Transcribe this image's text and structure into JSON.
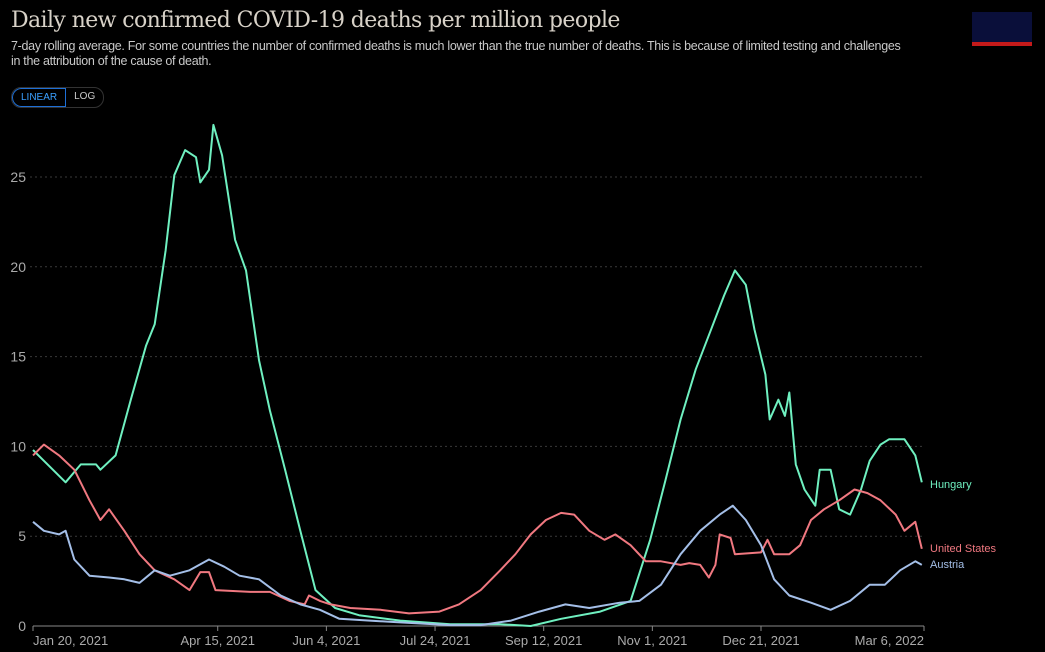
{
  "header": {
    "title": "Daily new confirmed COVID-19 deaths per million people",
    "subtitle": "7-day rolling average. For some countries the number of confirmed deaths is much lower than the true number of deaths. This is because of limited testing and challenges in the attribution of the cause of death.",
    "scale_options": [
      "LINEAR",
      "LOG"
    ],
    "selected_scale": "LINEAR",
    "logo_colors": {
      "bg": "#0a0f3a",
      "bar": "#c41a1a"
    }
  },
  "chart_data": {
    "type": "line",
    "title": "Daily new confirmed COVID-19 deaths per million people",
    "xlim": [
      "2021-01-20",
      "2022-03-06"
    ],
    "ylim": [
      0,
      27.5
    ],
    "yticks": [
      0,
      5,
      10,
      15,
      20,
      25
    ],
    "xticks": [
      {
        "date": "2021-01-20",
        "label": "Jan 20, 2021"
      },
      {
        "date": "2021-04-15",
        "label": "Apr 15, 2021"
      },
      {
        "date": "2021-06-04",
        "label": "Jun 4, 2021"
      },
      {
        "date": "2021-07-24",
        "label": "Jul 24, 2021"
      },
      {
        "date": "2021-09-12",
        "label": "Sep 12, 2021"
      },
      {
        "date": "2021-11-01",
        "label": "Nov 1, 2021"
      },
      {
        "date": "2021-12-21",
        "label": "Dec 21, 2021"
      },
      {
        "date": "2022-03-06",
        "label": "Mar 6, 2022"
      }
    ],
    "grid": true,
    "legend": "line-end labels",
    "series": [
      {
        "name": "Hungary",
        "color": "#6ff0c0",
        "points": [
          [
            "2021-01-20",
            9.8
          ],
          [
            "2021-01-25",
            9.2
          ],
          [
            "2021-02-04",
            8.0
          ],
          [
            "2021-02-11",
            9.0
          ],
          [
            "2021-02-18",
            9.0
          ],
          [
            "2021-02-20",
            8.7
          ],
          [
            "2021-02-27",
            9.5
          ],
          [
            "2021-03-06",
            12.6
          ],
          [
            "2021-03-13",
            15.6
          ],
          [
            "2021-03-17",
            16.8
          ],
          [
            "2021-03-22",
            20.9
          ],
          [
            "2021-03-26",
            25.1
          ],
          [
            "2021-03-31",
            26.5
          ],
          [
            "2021-04-05",
            26.1
          ],
          [
            "2021-04-07",
            24.7
          ],
          [
            "2021-04-11",
            25.4
          ],
          [
            "2021-04-13",
            27.9
          ],
          [
            "2021-04-17",
            26.2
          ],
          [
            "2021-04-23",
            21.5
          ],
          [
            "2021-04-28",
            19.8
          ],
          [
            "2021-05-04",
            14.8
          ],
          [
            "2021-05-09",
            12.0
          ],
          [
            "2021-05-16",
            8.7
          ],
          [
            "2021-05-23",
            5.3
          ],
          [
            "2021-05-30",
            2.0
          ],
          [
            "2021-06-08",
            1.0
          ],
          [
            "2021-06-19",
            0.6
          ],
          [
            "2021-07-08",
            0.3
          ],
          [
            "2021-07-31",
            0.1
          ],
          [
            "2021-08-23",
            0.1
          ],
          [
            "2021-09-06",
            0.0
          ],
          [
            "2021-09-20",
            0.4
          ],
          [
            "2021-10-08",
            0.8
          ],
          [
            "2021-10-22",
            1.4
          ],
          [
            "2021-10-31",
            4.8
          ],
          [
            "2021-11-07",
            8.1
          ],
          [
            "2021-11-14",
            11.5
          ],
          [
            "2021-11-21",
            14.3
          ],
          [
            "2021-11-28",
            16.5
          ],
          [
            "2021-12-04",
            18.4
          ],
          [
            "2021-12-09",
            19.8
          ],
          [
            "2021-12-14",
            19.0
          ],
          [
            "2021-12-18",
            16.5
          ],
          [
            "2021-12-23",
            14.0
          ],
          [
            "2021-12-25",
            11.5
          ],
          [
            "2021-12-29",
            12.6
          ],
          [
            "2022-01-01",
            11.7
          ],
          [
            "2022-01-03",
            13.0
          ],
          [
            "2022-01-06",
            9.0
          ],
          [
            "2022-01-10",
            7.6
          ],
          [
            "2022-01-15",
            6.7
          ],
          [
            "2022-01-17",
            8.7
          ],
          [
            "2022-01-22",
            8.7
          ],
          [
            "2022-01-26",
            6.5
          ],
          [
            "2022-01-31",
            6.2
          ],
          [
            "2022-02-05",
            7.6
          ],
          [
            "2022-02-09",
            9.2
          ],
          [
            "2022-02-14",
            10.1
          ],
          [
            "2022-02-18",
            10.4
          ],
          [
            "2022-02-25",
            10.4
          ],
          [
            "2022-03-02",
            9.5
          ],
          [
            "2022-03-05",
            8.0
          ]
        ]
      },
      {
        "name": "United States",
        "color": "#f07880",
        "points": [
          [
            "2021-01-20",
            9.5
          ],
          [
            "2021-01-25",
            10.1
          ],
          [
            "2021-02-01",
            9.5
          ],
          [
            "2021-02-08",
            8.7
          ],
          [
            "2021-02-15",
            7.0
          ],
          [
            "2021-02-20",
            5.9
          ],
          [
            "2021-02-24",
            6.5
          ],
          [
            "2021-03-03",
            5.3
          ],
          [
            "2021-03-10",
            4.0
          ],
          [
            "2021-03-17",
            3.1
          ],
          [
            "2021-03-26",
            2.6
          ],
          [
            "2021-04-02",
            2.0
          ],
          [
            "2021-04-07",
            3.0
          ],
          [
            "2021-04-11",
            3.0
          ],
          [
            "2021-04-14",
            2.0
          ],
          [
            "2021-04-30",
            1.9
          ],
          [
            "2021-05-09",
            1.9
          ],
          [
            "2021-05-18",
            1.4
          ],
          [
            "2021-05-25",
            1.2
          ],
          [
            "2021-05-27",
            1.7
          ],
          [
            "2021-06-01",
            1.4
          ],
          [
            "2021-06-06",
            1.2
          ],
          [
            "2021-06-15",
            1.0
          ],
          [
            "2021-06-29",
            0.9
          ],
          [
            "2021-07-12",
            0.7
          ],
          [
            "2021-07-26",
            0.8
          ],
          [
            "2021-08-04",
            1.2
          ],
          [
            "2021-08-14",
            2.0
          ],
          [
            "2021-08-23",
            3.1
          ],
          [
            "2021-08-30",
            4.0
          ],
          [
            "2021-09-06",
            5.1
          ],
          [
            "2021-09-13",
            5.9
          ],
          [
            "2021-09-20",
            6.3
          ],
          [
            "2021-09-26",
            6.2
          ],
          [
            "2021-10-03",
            5.3
          ],
          [
            "2021-10-10",
            4.8
          ],
          [
            "2021-10-15",
            5.1
          ],
          [
            "2021-10-22",
            4.5
          ],
          [
            "2021-10-29",
            3.6
          ],
          [
            "2021-11-05",
            3.6
          ],
          [
            "2021-11-14",
            3.4
          ],
          [
            "2021-11-18",
            3.5
          ],
          [
            "2021-11-23",
            3.4
          ],
          [
            "2021-11-27",
            2.7
          ],
          [
            "2021-11-30",
            3.4
          ],
          [
            "2021-12-02",
            5.1
          ],
          [
            "2021-12-07",
            4.9
          ],
          [
            "2021-12-09",
            4.0
          ],
          [
            "2021-12-21",
            4.1
          ],
          [
            "2021-12-24",
            4.8
          ],
          [
            "2021-12-27",
            4.0
          ],
          [
            "2022-01-03",
            4.0
          ],
          [
            "2022-01-08",
            4.5
          ],
          [
            "2022-01-13",
            5.9
          ],
          [
            "2022-01-19",
            6.5
          ],
          [
            "2022-01-26",
            7.0
          ],
          [
            "2022-02-02",
            7.6
          ],
          [
            "2022-02-08",
            7.4
          ],
          [
            "2022-02-14",
            7.0
          ],
          [
            "2022-02-21",
            6.2
          ],
          [
            "2022-02-25",
            5.3
          ],
          [
            "2022-03-02",
            5.8
          ],
          [
            "2022-03-05",
            4.3
          ]
        ]
      },
      {
        "name": "Austria",
        "color": "#a4bfe8",
        "points": [
          [
            "2021-01-20",
            5.8
          ],
          [
            "2021-01-25",
            5.3
          ],
          [
            "2021-02-01",
            5.1
          ],
          [
            "2021-02-04",
            5.3
          ],
          [
            "2021-02-08",
            3.7
          ],
          [
            "2021-02-15",
            2.8
          ],
          [
            "2021-02-24",
            2.7
          ],
          [
            "2021-03-03",
            2.6
          ],
          [
            "2021-03-10",
            2.4
          ],
          [
            "2021-03-17",
            3.1
          ],
          [
            "2021-03-24",
            2.8
          ],
          [
            "2021-04-02",
            3.1
          ],
          [
            "2021-04-11",
            3.7
          ],
          [
            "2021-04-18",
            3.3
          ],
          [
            "2021-04-25",
            2.8
          ],
          [
            "2021-05-04",
            2.6
          ],
          [
            "2021-05-14",
            1.7
          ],
          [
            "2021-05-23",
            1.2
          ],
          [
            "2021-06-01",
            0.9
          ],
          [
            "2021-06-10",
            0.4
          ],
          [
            "2021-06-24",
            0.3
          ],
          [
            "2021-07-08",
            0.2
          ],
          [
            "2021-07-31",
            0.05
          ],
          [
            "2021-08-14",
            0.05
          ],
          [
            "2021-08-28",
            0.3
          ],
          [
            "2021-09-10",
            0.8
          ],
          [
            "2021-09-22",
            1.2
          ],
          [
            "2021-10-03",
            1.0
          ],
          [
            "2021-10-17",
            1.3
          ],
          [
            "2021-10-26",
            1.4
          ],
          [
            "2021-11-05",
            2.3
          ],
          [
            "2021-11-14",
            4.0
          ],
          [
            "2021-11-23",
            5.3
          ],
          [
            "2021-12-02",
            6.2
          ],
          [
            "2021-12-08",
            6.7
          ],
          [
            "2021-12-14",
            5.9
          ],
          [
            "2021-12-21",
            4.5
          ],
          [
            "2021-12-27",
            2.6
          ],
          [
            "2022-01-03",
            1.7
          ],
          [
            "2022-01-13",
            1.3
          ],
          [
            "2022-01-22",
            0.9
          ],
          [
            "2022-01-31",
            1.4
          ],
          [
            "2022-02-09",
            2.3
          ],
          [
            "2022-02-16",
            2.3
          ],
          [
            "2022-02-23",
            3.1
          ],
          [
            "2022-03-02",
            3.6
          ],
          [
            "2022-03-05",
            3.4
          ]
        ]
      }
    ]
  }
}
